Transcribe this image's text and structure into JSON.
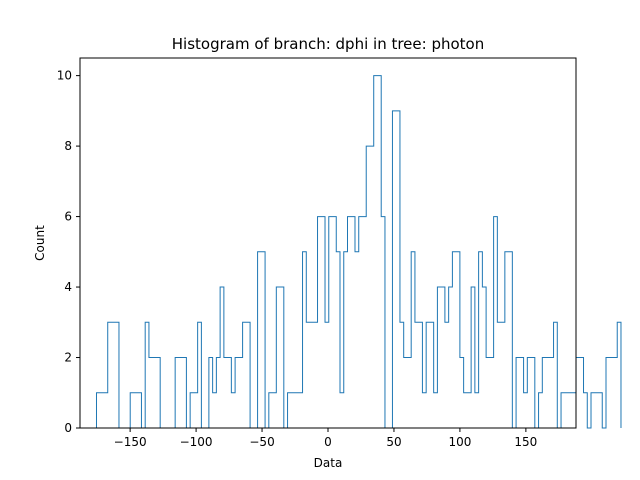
{
  "chart_data": {
    "type": "histogram",
    "title": "Histogram of branch: dphi in tree: photon",
    "xlabel": "Data",
    "ylabel": "Count",
    "xlim": [
      -188,
      188
    ],
    "ylim": [
      0,
      10.5
    ],
    "xticks": [
      -150,
      -100,
      -50,
      0,
      50,
      100,
      150
    ],
    "xtick_labels": [
      "−150",
      "−100",
      "−50",
      "0",
      "50",
      "100",
      "150"
    ],
    "yticks": [
      0,
      2,
      4,
      6,
      8,
      10
    ],
    "ytick_labels": [
      "0",
      "2",
      "4",
      "6",
      "8",
      "10"
    ],
    "bin_start": -175.5,
    "bin_width": 2.84,
    "bin_counts": [
      1,
      1,
      1,
      3,
      3,
      3,
      0,
      0,
      0,
      1,
      1,
      1,
      0,
      3,
      2,
      2,
      2,
      0,
      0,
      0,
      0,
      2,
      2,
      2,
      0,
      1,
      1,
      3,
      0,
      0,
      2,
      1,
      2,
      4,
      2,
      2,
      1,
      2,
      2,
      3,
      3,
      0,
      0,
      5,
      5,
      0,
      1,
      1,
      4,
      4,
      0,
      1,
      1,
      1,
      1,
      5,
      3,
      3,
      3,
      6,
      6,
      3,
      6,
      6,
      5,
      1,
      5,
      6,
      6,
      5,
      6,
      6,
      8,
      8,
      10,
      10,
      6,
      0,
      0,
      9,
      9,
      3,
      2,
      2,
      5,
      3,
      3,
      1,
      3,
      3,
      1,
      4,
      4,
      3,
      4,
      5,
      5,
      2,
      1,
      1,
      4,
      1,
      5,
      4,
      2,
      2,
      6,
      3,
      3,
      5,
      5,
      0,
      2,
      2,
      1,
      2,
      2,
      0,
      1,
      2,
      2,
      2,
      3,
      0,
      1,
      1,
      1,
      1,
      2,
      2,
      1,
      0,
      1,
      1,
      1,
      0,
      2,
      2,
      2,
      3
    ],
    "color": "#1f77b4",
    "grid": false,
    "legend": "none"
  }
}
